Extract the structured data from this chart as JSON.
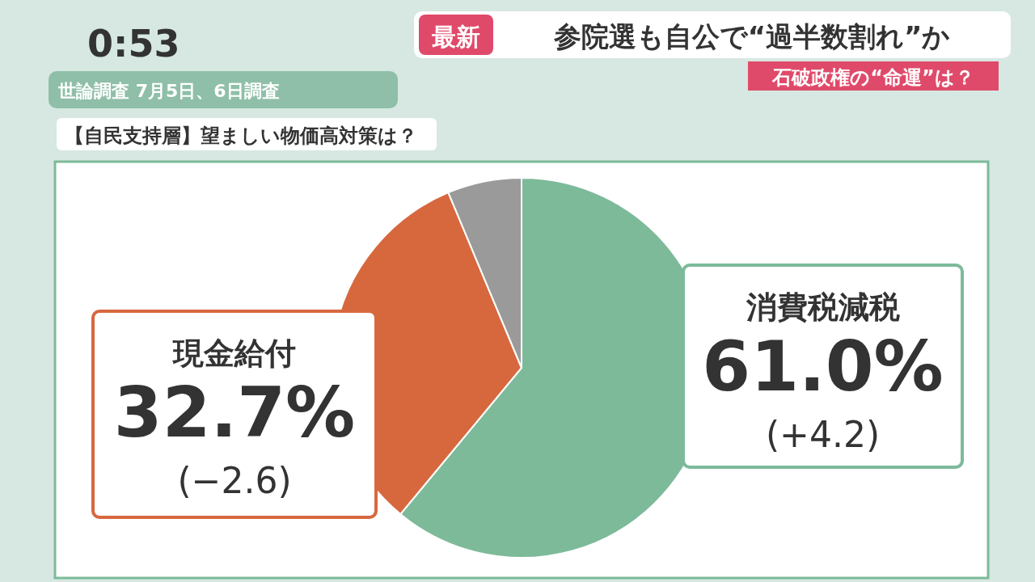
{
  "chart_data": {
    "type": "pie",
    "title": "【自民支持層】望ましい物価高対策は？",
    "subtitle": "世論調査 7月5日、6日調査",
    "categories": [
      "消費税減税",
      "現金給付",
      null
    ],
    "values": [
      61.0,
      32.7,
      6.3
    ],
    "colors": [
      "#7dba9a",
      "#d7683e",
      "#9a9a9a"
    ],
    "value_labels": [
      "61.0%",
      "32.7%",
      null
    ],
    "annotations": [
      "(+4.2)",
      "(−2.6)",
      "0:53",
      "最新",
      "参院選も自公で“過半数割れ”か",
      "石破政権の“命運”は？"
    ]
  }
}
